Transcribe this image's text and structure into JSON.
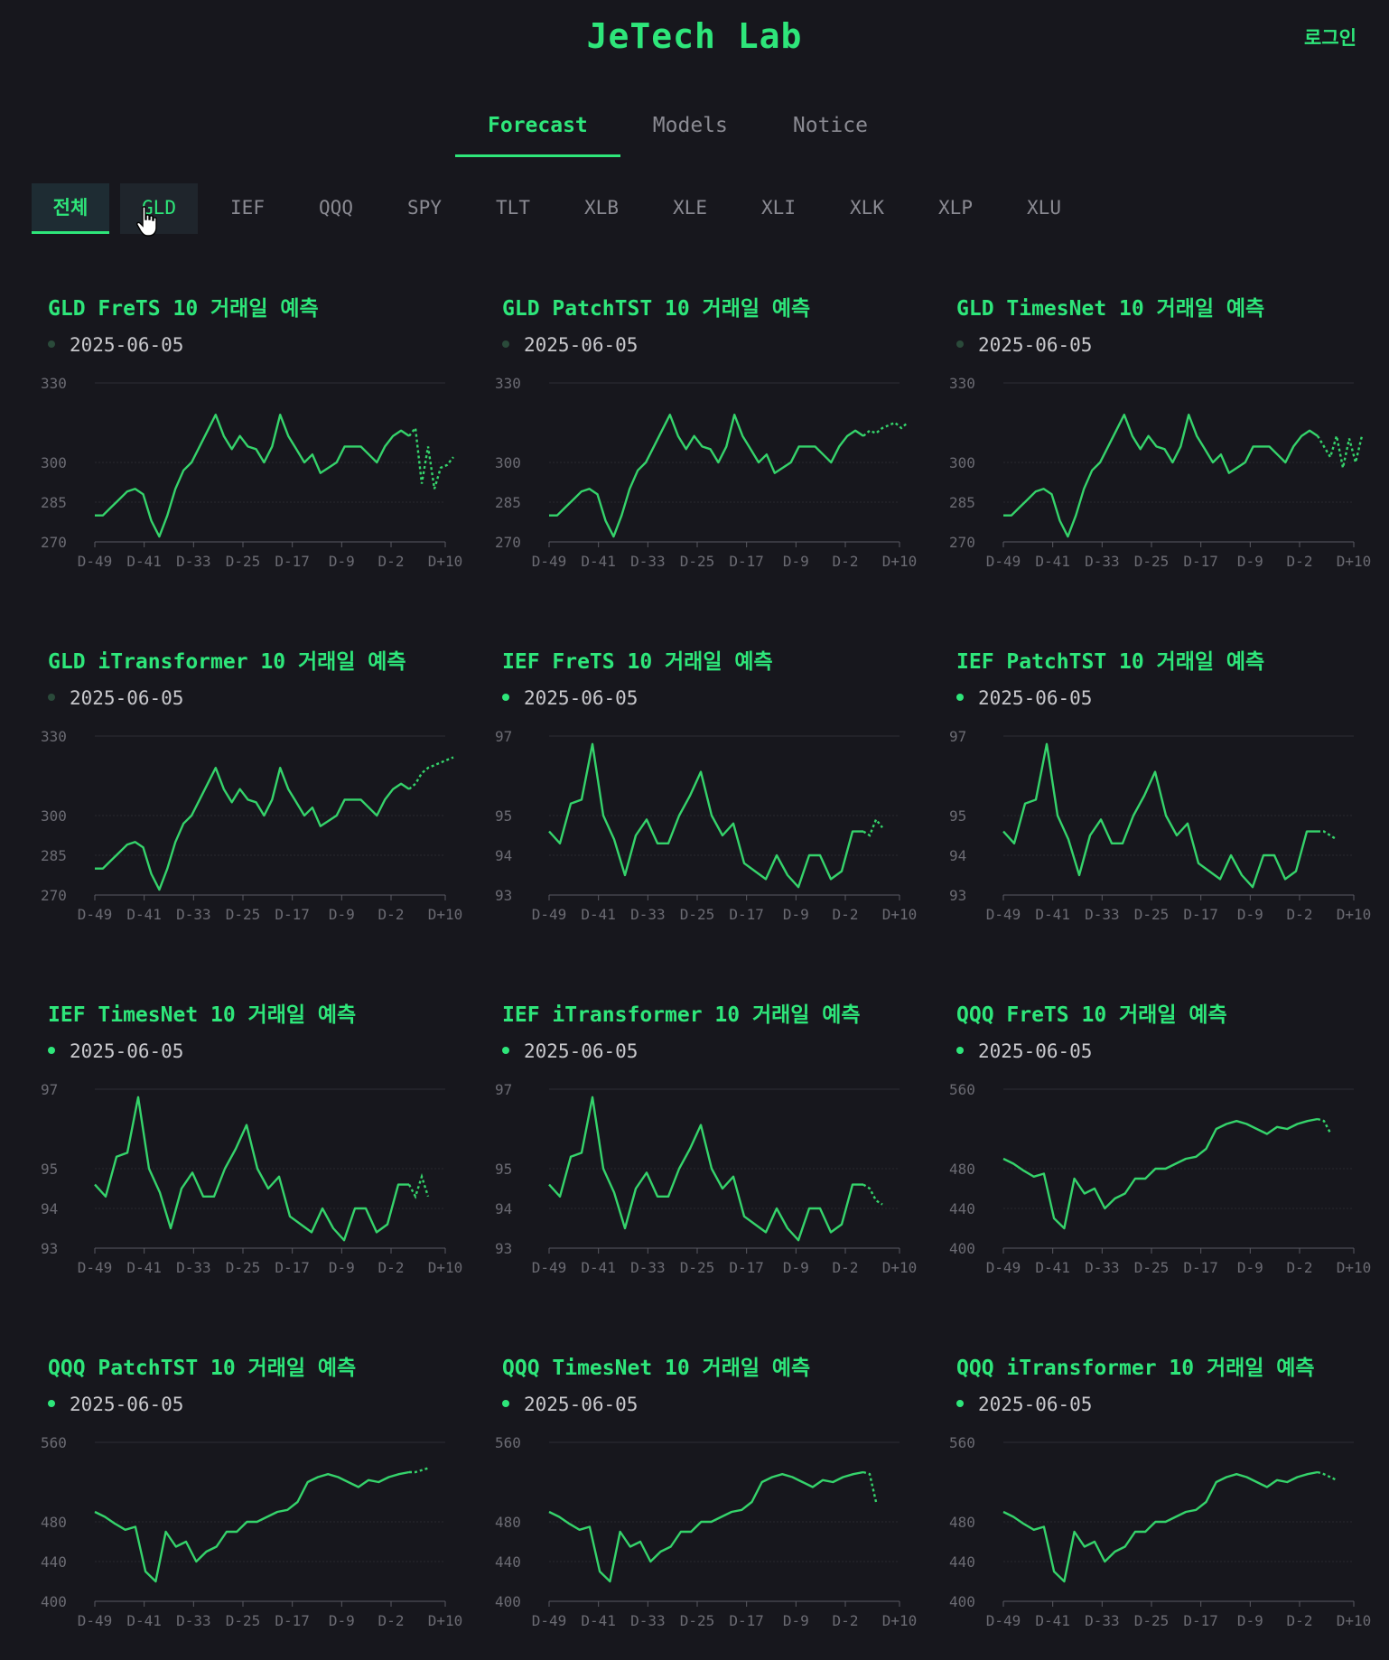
{
  "header": {
    "title": "JeTech Lab",
    "login": "로그인"
  },
  "nav": {
    "tabs": [
      "Forecast",
      "Models",
      "Notice"
    ],
    "active": 0
  },
  "tickers": {
    "items": [
      "전체",
      "GLD",
      "IEF",
      "QQQ",
      "SPY",
      "TLT",
      "XLB",
      "XLE",
      "XLI",
      "XLK",
      "XLP",
      "XLU"
    ],
    "active": 0,
    "hover": 1
  },
  "colors": {
    "accent": "#2ee67a",
    "line": "#35d36b",
    "dot_active": "#2ee67a",
    "dot_inactive": "#2a4a3a"
  },
  "chart_data": [
    {
      "type": "line",
      "title": "GLD FreTS 10 거래일 예측",
      "date": "2025-06-05",
      "dot_active": false,
      "yticks": [
        270,
        285,
        300,
        330
      ],
      "ylim": [
        270,
        330
      ],
      "xticks": [
        "D-49",
        "D-41",
        "D-33",
        "D-25",
        "D-17",
        "D-9",
        "D-2",
        "D+10"
      ],
      "history": [
        280,
        280,
        283,
        286,
        289,
        290,
        288,
        278,
        272,
        280,
        290,
        297,
        300,
        306,
        312,
        318,
        310,
        305,
        310,
        306,
        305,
        300,
        306,
        318,
        310,
        305,
        300,
        303,
        296,
        298,
        300,
        306,
        306,
        306,
        303,
        300,
        306,
        310,
        312,
        310
      ],
      "forecast": [
        313,
        292,
        306,
        290,
        298,
        299,
        302
      ]
    },
    {
      "type": "line",
      "title": "GLD PatchTST 10 거래일 예측",
      "date": "2025-06-05",
      "dot_active": false,
      "yticks": [
        270,
        285,
        300,
        330
      ],
      "ylim": [
        270,
        330
      ],
      "xticks": [
        "D-49",
        "D-41",
        "D-33",
        "D-25",
        "D-17",
        "D-9",
        "D-2",
        "D+10"
      ],
      "history": [
        280,
        280,
        283,
        286,
        289,
        290,
        288,
        278,
        272,
        280,
        290,
        297,
        300,
        306,
        312,
        318,
        310,
        305,
        310,
        306,
        305,
        300,
        306,
        318,
        310,
        305,
        300,
        303,
        296,
        298,
        300,
        306,
        306,
        306,
        303,
        300,
        306,
        310,
        312,
        310
      ],
      "forecast": [
        312,
        311,
        313,
        314,
        315,
        313,
        315
      ]
    },
    {
      "type": "line",
      "title": "GLD TimesNet 10 거래일 예측",
      "date": "2025-06-05",
      "dot_active": false,
      "yticks": [
        270,
        285,
        300,
        330
      ],
      "ylim": [
        270,
        330
      ],
      "xticks": [
        "D-49",
        "D-41",
        "D-33",
        "D-25",
        "D-17",
        "D-9",
        "D-2",
        "D+10"
      ],
      "history": [
        280,
        280,
        283,
        286,
        289,
        290,
        288,
        278,
        272,
        280,
        290,
        297,
        300,
        306,
        312,
        318,
        310,
        305,
        310,
        306,
        305,
        300,
        306,
        318,
        310,
        305,
        300,
        303,
        296,
        298,
        300,
        306,
        306,
        306,
        303,
        300,
        306,
        310,
        312,
        310
      ],
      "forecast": [
        306,
        302,
        310,
        298,
        309,
        300,
        310
      ]
    },
    {
      "type": "line",
      "title": "GLD iTransformer 10 거래일 예측",
      "date": "2025-06-05",
      "dot_active": false,
      "yticks": [
        270,
        285,
        300,
        330
      ],
      "ylim": [
        270,
        330
      ],
      "xticks": [
        "D-49",
        "D-41",
        "D-33",
        "D-25",
        "D-17",
        "D-9",
        "D-2",
        "D+10"
      ],
      "history": [
        280,
        280,
        283,
        286,
        289,
        290,
        288,
        278,
        272,
        280,
        290,
        297,
        300,
        306,
        312,
        318,
        310,
        305,
        310,
        306,
        305,
        300,
        306,
        318,
        310,
        305,
        300,
        303,
        296,
        298,
        300,
        306,
        306,
        306,
        303,
        300,
        306,
        310,
        312,
        310
      ],
      "forecast": [
        312,
        316,
        318,
        319,
        320,
        321,
        322
      ]
    },
    {
      "type": "line",
      "title": "IEF FreTS 10 거래일 예측",
      "date": "2025-06-05",
      "dot_active": true,
      "yticks": [
        93,
        94,
        95,
        97
      ],
      "ylim": [
        93,
        97
      ],
      "xticks": [
        "D-49",
        "D-41",
        "D-33",
        "D-25",
        "D-17",
        "D-9",
        "D-2",
        "D+10"
      ],
      "history": [
        94.6,
        94.3,
        95.3,
        95.4,
        96.8,
        95.0,
        94.4,
        93.5,
        94.5,
        94.9,
        94.3,
        94.3,
        95.0,
        95.5,
        96.1,
        95.0,
        94.5,
        94.8,
        93.8,
        93.6,
        93.4,
        94.0,
        93.5,
        93.2,
        94.0,
        94.0,
        93.4,
        93.6,
        94.6,
        94.6
      ],
      "forecast": [
        94.5,
        94.9,
        94.7
      ]
    },
    {
      "type": "line",
      "title": "IEF PatchTST 10 거래일 예측",
      "date": "2025-06-05",
      "dot_active": true,
      "yticks": [
        93,
        94,
        95,
        97
      ],
      "ylim": [
        93,
        97
      ],
      "xticks": [
        "D-49",
        "D-41",
        "D-33",
        "D-25",
        "D-17",
        "D-9",
        "D-2",
        "D+10"
      ],
      "history": [
        94.6,
        94.3,
        95.3,
        95.4,
        96.8,
        95.0,
        94.4,
        93.5,
        94.5,
        94.9,
        94.3,
        94.3,
        95.0,
        95.5,
        96.1,
        95.0,
        94.5,
        94.8,
        93.8,
        93.6,
        93.4,
        94.0,
        93.5,
        93.2,
        94.0,
        94.0,
        93.4,
        93.6,
        94.6,
        94.6
      ],
      "forecast": [
        94.6,
        94.5,
        94.4
      ]
    },
    {
      "type": "line",
      "title": "IEF TimesNet 10 거래일 예측",
      "date": "2025-06-05",
      "dot_active": true,
      "yticks": [
        93,
        94,
        95,
        97
      ],
      "ylim": [
        93,
        97
      ],
      "xticks": [
        "D-49",
        "D-41",
        "D-33",
        "D-25",
        "D-17",
        "D-9",
        "D-2",
        "D+10"
      ],
      "history": [
        94.6,
        94.3,
        95.3,
        95.4,
        96.8,
        95.0,
        94.4,
        93.5,
        94.5,
        94.9,
        94.3,
        94.3,
        95.0,
        95.5,
        96.1,
        95.0,
        94.5,
        94.8,
        93.8,
        93.6,
        93.4,
        94.0,
        93.5,
        93.2,
        94.0,
        94.0,
        93.4,
        93.6,
        94.6,
        94.6
      ],
      "forecast": [
        94.3,
        94.8,
        94.3
      ]
    },
    {
      "type": "line",
      "title": "IEF iTransformer 10 거래일 예측",
      "date": "2025-06-05",
      "dot_active": true,
      "yticks": [
        93,
        94,
        95,
        97
      ],
      "ylim": [
        93,
        97
      ],
      "xticks": [
        "D-49",
        "D-41",
        "D-33",
        "D-25",
        "D-17",
        "D-9",
        "D-2",
        "D+10"
      ],
      "history": [
        94.6,
        94.3,
        95.3,
        95.4,
        96.8,
        95.0,
        94.4,
        93.5,
        94.5,
        94.9,
        94.3,
        94.3,
        95.0,
        95.5,
        96.1,
        95.0,
        94.5,
        94.8,
        93.8,
        93.6,
        93.4,
        94.0,
        93.5,
        93.2,
        94.0,
        94.0,
        93.4,
        93.6,
        94.6,
        94.6
      ],
      "forecast": [
        94.5,
        94.2,
        94.1
      ]
    },
    {
      "type": "line",
      "title": "QQQ FreTS 10 거래일 예측",
      "date": "2025-06-05",
      "dot_active": true,
      "yticks": [
        400,
        440,
        480,
        560
      ],
      "ylim": [
        400,
        560
      ],
      "xticks": [
        "D-49",
        "D-41",
        "D-33",
        "D-25",
        "D-17",
        "D-9",
        "D-2",
        "D+10"
      ],
      "history": [
        490,
        485,
        478,
        472,
        475,
        430,
        420,
        470,
        455,
        460,
        440,
        450,
        455,
        470,
        470,
        480,
        480,
        485,
        490,
        492,
        500,
        520,
        525,
        528,
        525,
        520,
        515,
        522,
        520,
        525,
        528,
        530
      ],
      "forecast": [
        528,
        516
      ]
    },
    {
      "type": "line",
      "title": "QQQ PatchTST 10 거래일 예측",
      "date": "2025-06-05",
      "dot_active": true,
      "yticks": [
        400,
        440,
        480,
        560
      ],
      "ylim": [
        400,
        560
      ],
      "xticks": [
        "D-49",
        "D-41",
        "D-33",
        "D-25",
        "D-17",
        "D-9",
        "D-2",
        "D+10"
      ],
      "history": [
        490,
        485,
        478,
        472,
        475,
        430,
        420,
        470,
        455,
        460,
        440,
        450,
        455,
        470,
        470,
        480,
        480,
        485,
        490,
        492,
        500,
        520,
        525,
        528,
        525,
        520,
        515,
        522,
        520,
        525,
        528,
        530
      ],
      "forecast": [
        530,
        532,
        534
      ]
    },
    {
      "type": "line",
      "title": "QQQ TimesNet 10 거래일 예측",
      "date": "2025-06-05",
      "dot_active": true,
      "yticks": [
        400,
        440,
        480,
        560
      ],
      "ylim": [
        400,
        560
      ],
      "xticks": [
        "D-49",
        "D-41",
        "D-33",
        "D-25",
        "D-17",
        "D-9",
        "D-2",
        "D+10"
      ],
      "history": [
        490,
        485,
        478,
        472,
        475,
        430,
        420,
        470,
        455,
        460,
        440,
        450,
        455,
        470,
        470,
        480,
        480,
        485,
        490,
        492,
        500,
        520,
        525,
        528,
        525,
        520,
        515,
        522,
        520,
        525,
        528,
        530
      ],
      "forecast": [
        528,
        500
      ]
    },
    {
      "type": "line",
      "title": "QQQ iTransformer 10 거래일 예측",
      "date": "2025-06-05",
      "dot_active": true,
      "yticks": [
        400,
        440,
        480,
        560
      ],
      "ylim": [
        400,
        560
      ],
      "xticks": [
        "D-49",
        "D-41",
        "D-33",
        "D-25",
        "D-17",
        "D-9",
        "D-2",
        "D+10"
      ],
      "history": [
        490,
        485,
        478,
        472,
        475,
        430,
        420,
        470,
        455,
        460,
        440,
        450,
        455,
        470,
        470,
        480,
        480,
        485,
        490,
        492,
        500,
        520,
        525,
        528,
        525,
        520,
        515,
        522,
        520,
        525,
        528,
        530
      ],
      "forecast": [
        528,
        525,
        522
      ]
    }
  ]
}
